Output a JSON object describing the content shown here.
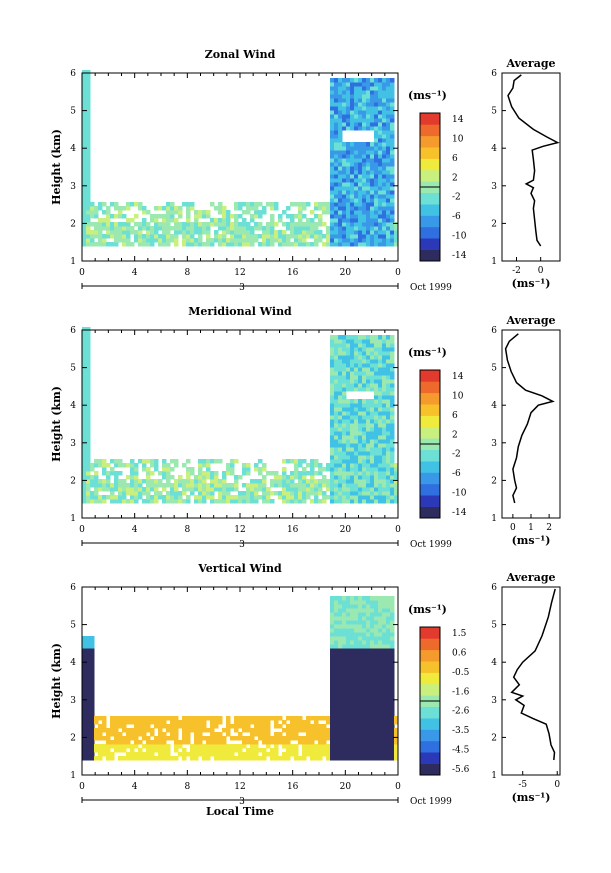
{
  "colorbar_ticks": {
    "zonal": [
      "14",
      "10",
      "6",
      "2",
      "-2",
      "-6",
      "-10",
      "-14"
    ],
    "meridional": [
      "14",
      "10",
      "6",
      "2",
      "-2",
      "-6",
      "-10",
      "-14"
    ],
    "vertical": [
      "1.5",
      "0.6",
      "-0.5",
      "-1.6",
      "-2.6",
      "-3.5",
      "-4.5",
      "-5.6"
    ]
  },
  "colors": [
    "#2e2c5e",
    "#2b38b8",
    "#2f6fe0",
    "#3a98e8",
    "#41c2e4",
    "#6de0d6",
    "#9be8b0",
    "#c9f07e",
    "#f0ea3c",
    "#f7c12b",
    "#f59a2c",
    "#ee6a2c",
    "#e23a2c"
  ],
  "chart_data": [
    {
      "type": "heatmap",
      "title": "Zonal Wind",
      "ylabel": "Height (km)",
      "xlabel": "",
      "x_ticks": [
        "0",
        "4",
        "8",
        "12",
        "16",
        "20",
        "0"
      ],
      "y_ticks": [
        "1",
        "2",
        "3",
        "4",
        "5",
        "6"
      ],
      "date_marks": [
        "3",
        "Oct 1999"
      ],
      "colorbar_unit": "(ms⁻¹)",
      "ylim": [
        1,
        6
      ],
      "xlim": [
        0,
        24
      ]
    },
    {
      "type": "line",
      "title": "Average",
      "xlabel": "(ms⁻¹)",
      "ylabel": "",
      "x_ticks": [
        "-2",
        "0"
      ],
      "y_ticks": [
        "1",
        "2",
        "3",
        "4",
        "5",
        "6"
      ],
      "xlim": [
        -3.2,
        1.6
      ],
      "ylim": [
        1,
        6
      ],
      "points": [
        [
          0.0,
          1.4
        ],
        [
          -0.3,
          1.55
        ],
        [
          -0.4,
          1.8
        ],
        [
          -0.5,
          2.1
        ],
        [
          -0.6,
          2.4
        ],
        [
          -0.5,
          2.6
        ],
        [
          -0.8,
          2.8
        ],
        [
          -0.6,
          2.95
        ],
        [
          -1.2,
          3.05
        ],
        [
          -0.6,
          3.15
        ],
        [
          -0.5,
          3.4
        ],
        [
          -0.6,
          3.7
        ],
        [
          -0.7,
          3.95
        ],
        [
          0.2,
          4.05
        ],
        [
          1.4,
          4.15
        ],
        [
          0.5,
          4.3
        ],
        [
          -0.6,
          4.5
        ],
        [
          -1.8,
          4.8
        ],
        [
          -2.4,
          5.1
        ],
        [
          -2.7,
          5.4
        ],
        [
          -2.3,
          5.6
        ],
        [
          -2.2,
          5.8
        ],
        [
          -1.6,
          5.95
        ]
      ]
    },
    {
      "type": "heatmap",
      "title": "Meridional Wind",
      "ylabel": "Height (km)",
      "xlabel": "",
      "x_ticks": [
        "0",
        "4",
        "8",
        "12",
        "16",
        "20",
        "0"
      ],
      "y_ticks": [
        "1",
        "2",
        "3",
        "4",
        "5",
        "6"
      ],
      "date_marks": [
        "3",
        "Oct 1999"
      ],
      "colorbar_unit": "(ms⁻¹)",
      "ylim": [
        1,
        6
      ],
      "xlim": [
        0,
        24
      ]
    },
    {
      "type": "line",
      "title": "Average",
      "xlabel": "(ms⁻¹)",
      "ylabel": "",
      "x_ticks": [
        "0",
        "1",
        "2"
      ],
      "y_ticks": [
        "1",
        "2",
        "3",
        "4",
        "5",
        "6"
      ],
      "xlim": [
        -0.6,
        2.6
      ],
      "ylim": [
        1,
        6
      ],
      "points": [
        [
          0.1,
          1.4
        ],
        [
          0.0,
          1.6
        ],
        [
          0.2,
          1.8
        ],
        [
          0.1,
          2.0
        ],
        [
          0.0,
          2.3
        ],
        [
          0.2,
          2.6
        ],
        [
          0.3,
          2.9
        ],
        [
          0.5,
          3.2
        ],
        [
          0.8,
          3.5
        ],
        [
          1.0,
          3.8
        ],
        [
          1.4,
          4.0
        ],
        [
          2.2,
          4.1
        ],
        [
          1.6,
          4.25
        ],
        [
          0.7,
          4.4
        ],
        [
          0.2,
          4.6
        ],
        [
          -0.1,
          4.9
        ],
        [
          -0.3,
          5.2
        ],
        [
          -0.4,
          5.5
        ],
        [
          -0.2,
          5.7
        ],
        [
          0.3,
          5.9
        ]
      ]
    },
    {
      "type": "heatmap",
      "title": "Vertical Wind",
      "ylabel": "Height (km)",
      "xlabel": "Local Time",
      "x_ticks": [
        "0",
        "4",
        "8",
        "12",
        "16",
        "20",
        "0"
      ],
      "y_ticks": [
        "1",
        "2",
        "3",
        "4",
        "5",
        "6"
      ],
      "date_marks": [
        "3",
        "Oct 1999"
      ],
      "colorbar_unit": "(ms⁻¹)",
      "ylim": [
        1,
        6
      ],
      "xlim": [
        0,
        24
      ]
    },
    {
      "type": "line",
      "title": "Average",
      "xlabel": "(ms⁻¹)",
      "ylabel": "",
      "x_ticks": [
        "-5",
        "0"
      ],
      "y_ticks": [
        "1",
        "2",
        "3",
        "4",
        "5",
        "6"
      ],
      "xlim": [
        -8,
        0.4
      ],
      "ylim": [
        1,
        6
      ],
      "points": [
        [
          -0.5,
          1.4
        ],
        [
          -0.4,
          1.6
        ],
        [
          -0.9,
          1.8
        ],
        [
          -1.2,
          2.1
        ],
        [
          -1.6,
          2.35
        ],
        [
          -3.5,
          2.5
        ],
        [
          -5.2,
          2.65
        ],
        [
          -4.8,
          2.85
        ],
        [
          -6.0,
          3.0
        ],
        [
          -5.0,
          3.1
        ],
        [
          -6.6,
          3.2
        ],
        [
          -5.5,
          3.4
        ],
        [
          -6.3,
          3.6
        ],
        [
          -5.8,
          3.8
        ],
        [
          -5.0,
          4.0
        ],
        [
          -3.2,
          4.3
        ],
        [
          -2.2,
          4.7
        ],
        [
          -1.3,
          5.2
        ],
        [
          -0.8,
          5.6
        ],
        [
          -0.3,
          5.95
        ]
      ]
    }
  ]
}
